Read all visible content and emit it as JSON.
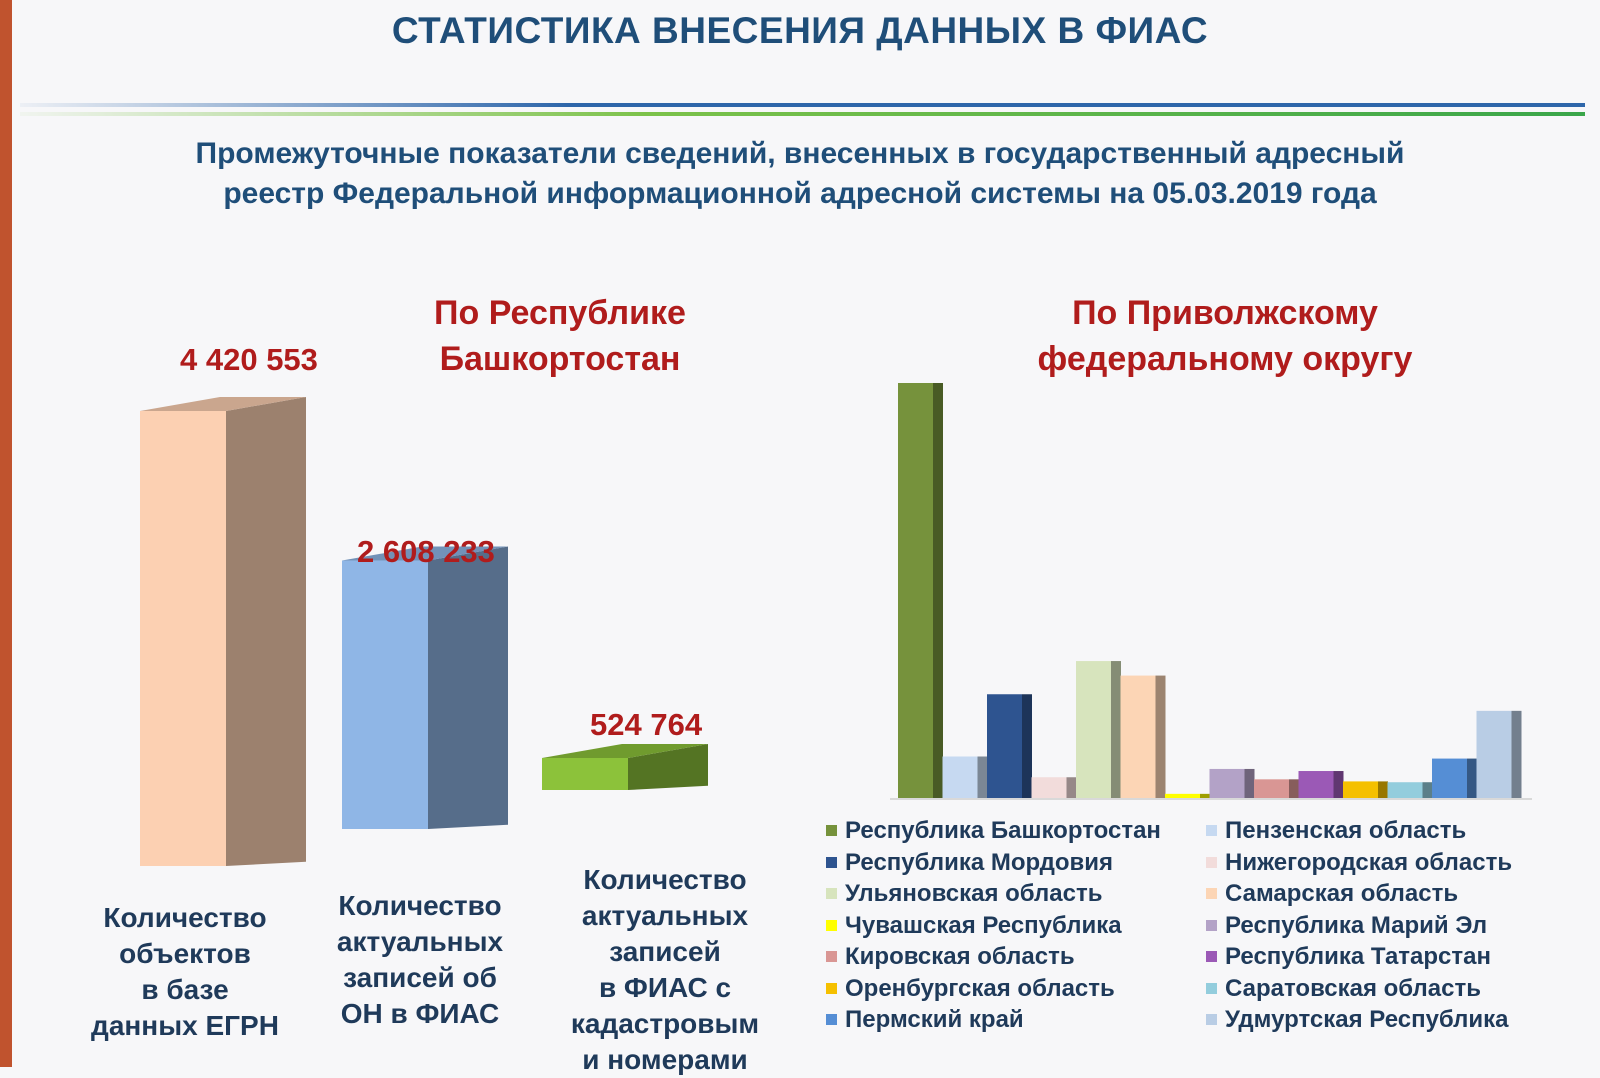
{
  "title": "СТАТИСТИКА ВНЕСЕНИЯ ДАННЫХ В ФИАС",
  "subtitle_lines": [
    "Промежуточные показатели сведений, внесенных в государственный адресный",
    "реестр Федеральной информационной адресной системы на 05.03.2019 года"
  ],
  "chart_data": [
    {
      "type": "bar",
      "title_lines": [
        "По Республике",
        "Башкортостан"
      ],
      "categories": [
        [
          "Количество",
          "объектов",
          "в базе",
          "данных ЕГРН"
        ],
        [
          "Количество",
          "актуальных",
          "записей об",
          "ОН в ФИАС"
        ],
        [
          "Количество",
          "актуальных",
          "записей",
          "в ФИАС с",
          "кадастровым",
          "и номерами"
        ]
      ],
      "values": [
        4420553,
        2608233,
        524764
      ],
      "value_labels": [
        "4 420 553",
        "2 608 233",
        "524 764"
      ],
      "colors": [
        "#fcd0b2",
        "#8fb6e6",
        "#8cc23a"
      ]
    },
    {
      "type": "bar",
      "title_lines": [
        "По Приволжскому",
        "федеральному округу"
      ],
      "legend_position": "bottom",
      "series": [
        {
          "name": "Республика Башкортостан",
          "value": 100,
          "color": "#76923c"
        },
        {
          "name": "Пензенская область",
          "value": 10,
          "color": "#c6d9f1"
        },
        {
          "name": "Республика Мордовия",
          "value": 25,
          "color": "#2e5490"
        },
        {
          "name": "Нижегородская область",
          "value": 5,
          "color": "#f2dcdb"
        },
        {
          "name": "Ульяновская область",
          "value": 33,
          "color": "#d7e4bd"
        },
        {
          "name": "Самарская область",
          "value": 29.5,
          "color": "#fcd5b5"
        },
        {
          "name": "Чувашская Республика",
          "value": 1,
          "color": "#ffff00"
        },
        {
          "name": "Республика Марий Эл",
          "value": 7,
          "color": "#b3a2c7"
        },
        {
          "name": "Кировская область",
          "value": 4.5,
          "color": "#d99694"
        },
        {
          "name": "Республика Татарстан",
          "value": 6.5,
          "color": "#9b59b6"
        },
        {
          "name": "Оренбургская область",
          "value": 4,
          "color": "#f5c000"
        },
        {
          "name": "Саратовская область",
          "value": 3.8,
          "color": "#93cddd"
        },
        {
          "name": "Пермский край",
          "value": 9.5,
          "color": "#558ed5"
        },
        {
          "name": "Удмуртская Республика",
          "value": 21,
          "color": "#b9cde5"
        }
      ]
    }
  ]
}
